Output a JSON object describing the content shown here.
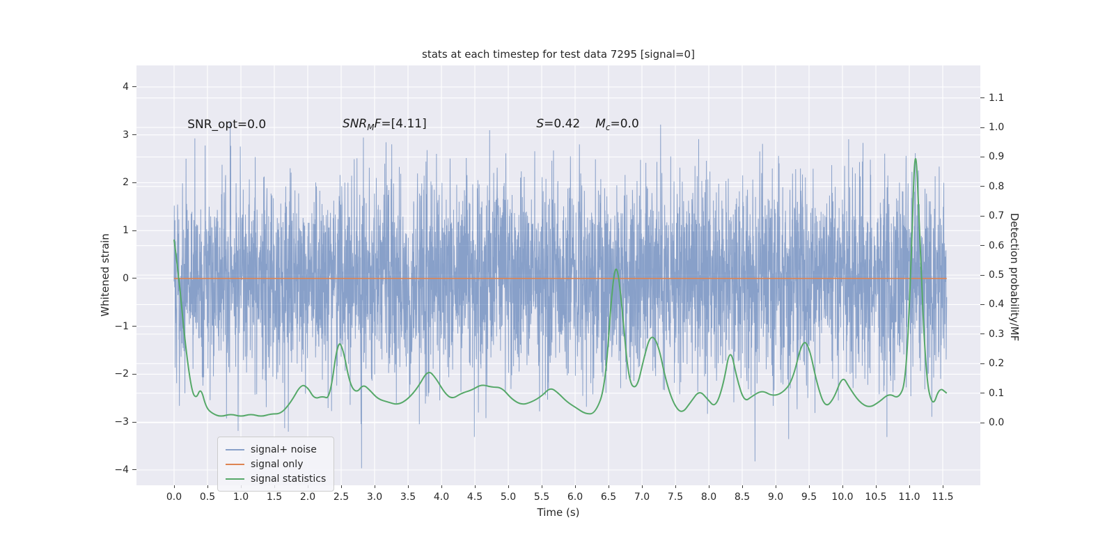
{
  "chart_data": {
    "type": "line",
    "title": "stats at each timestep for test data 7295 [signal=0]",
    "xlabel": "Time (s)",
    "ylabel_left": "Whitened strain",
    "ylabel_right": "Detection probability/MF",
    "xlim": [
      -0.5625,
      12.0625
    ],
    "ylim_left": [
      -4.32,
      4.45
    ],
    "ylim_right": [
      -0.212,
      1.21
    ],
    "grid": true,
    "axes_background": "#eaeaf2",
    "grid_color": "#ffffff",
    "x_ticks": {
      "values": [
        0,
        0.5,
        1,
        1.5,
        2,
        2.5,
        3,
        3.5,
        4,
        4.5,
        5,
        5.5,
        6,
        6.5,
        7,
        7.5,
        8,
        8.5,
        9,
        9.5,
        10,
        10.5,
        11,
        11.5
      ],
      "labels": [
        "0.0",
        "0.5",
        "1.0",
        "1.5",
        "2.0",
        "2.5",
        "3.0",
        "3.5",
        "4.0",
        "4.5",
        "5.0",
        "5.5",
        "6.0",
        "6.5",
        "7.0",
        "7.5",
        "8.0",
        "8.5",
        "9.0",
        "9.5",
        "10.0",
        "10.5",
        "11.0",
        "11.5"
      ]
    },
    "y_ticks_left": {
      "values": [
        4,
        3,
        2,
        1,
        0,
        -1,
        -2,
        -3,
        -4
      ],
      "labels": [
        "4",
        "3",
        "2",
        "1",
        "0",
        "−1",
        "−2",
        "−3",
        "−4"
      ]
    },
    "y_ticks_right": {
      "values": [
        1.1,
        1.0,
        0.9,
        0.8,
        0.7,
        0.6,
        0.5,
        0.4,
        0.3,
        0.2,
        0.1,
        0.0
      ],
      "labels": [
        "1.1",
        "1.0",
        "0.9",
        "0.8",
        "0.7",
        "0.6",
        "0.5",
        "0.4",
        "0.3",
        "0.2",
        "0.1",
        "0.0"
      ]
    },
    "series": [
      {
        "name": "signal+ noise",
        "axis": "left",
        "kind": "gaussian-noise",
        "color": "#4c72b0",
        "alpha": 0.62,
        "mean": 0,
        "std": 1.03,
        "n_samples": 4200,
        "seed": 7295,
        "t_start": 0,
        "t_end": 11.56
      },
      {
        "name": "signal only",
        "axis": "left",
        "kind": "constant",
        "color": "#dd8452",
        "value": 0,
        "t_start": 0,
        "t_end": 11.56
      },
      {
        "name": "signal statistics",
        "axis": "right",
        "kind": "curve",
        "color": "#55a868",
        "points": [
          [
            0.0,
            0.62
          ],
          [
            0.07,
            0.5
          ],
          [
            0.16,
            0.28
          ],
          [
            0.26,
            0.11
          ],
          [
            0.33,
            0.08
          ],
          [
            0.4,
            0.12
          ],
          [
            0.48,
            0.05
          ],
          [
            0.58,
            0.03
          ],
          [
            0.7,
            0.02
          ],
          [
            0.85,
            0.03
          ],
          [
            1.0,
            0.02
          ],
          [
            1.15,
            0.03
          ],
          [
            1.3,
            0.02
          ],
          [
            1.45,
            0.03
          ],
          [
            1.6,
            0.03
          ],
          [
            1.75,
            0.07
          ],
          [
            1.9,
            0.13
          ],
          [
            2.0,
            0.12
          ],
          [
            2.1,
            0.08
          ],
          [
            2.22,
            0.09
          ],
          [
            2.33,
            0.08
          ],
          [
            2.45,
            0.28
          ],
          [
            2.53,
            0.25
          ],
          [
            2.63,
            0.13
          ],
          [
            2.73,
            0.1
          ],
          [
            2.83,
            0.13
          ],
          [
            2.93,
            0.11
          ],
          [
            3.05,
            0.08
          ],
          [
            3.2,
            0.07
          ],
          [
            3.35,
            0.06
          ],
          [
            3.5,
            0.08
          ],
          [
            3.65,
            0.12
          ],
          [
            3.8,
            0.18
          ],
          [
            3.92,
            0.15
          ],
          [
            4.05,
            0.1
          ],
          [
            4.16,
            0.08
          ],
          [
            4.3,
            0.1
          ],
          [
            4.45,
            0.11
          ],
          [
            4.6,
            0.13
          ],
          [
            4.75,
            0.12
          ],
          [
            4.9,
            0.12
          ],
          [
            5.05,
            0.08
          ],
          [
            5.2,
            0.06
          ],
          [
            5.35,
            0.07
          ],
          [
            5.5,
            0.09
          ],
          [
            5.63,
            0.12
          ],
          [
            5.75,
            0.1
          ],
          [
            5.88,
            0.07
          ],
          [
            6.02,
            0.05
          ],
          [
            6.15,
            0.03
          ],
          [
            6.3,
            0.03
          ],
          [
            6.45,
            0.12
          ],
          [
            6.55,
            0.45
          ],
          [
            6.62,
            0.55
          ],
          [
            6.7,
            0.4
          ],
          [
            6.8,
            0.14
          ],
          [
            6.92,
            0.11
          ],
          [
            7.03,
            0.22
          ],
          [
            7.13,
            0.3
          ],
          [
            7.24,
            0.27
          ],
          [
            7.36,
            0.14
          ],
          [
            7.48,
            0.06
          ],
          [
            7.6,
            0.03
          ],
          [
            7.73,
            0.07
          ],
          [
            7.86,
            0.11
          ],
          [
            7.98,
            0.08
          ],
          [
            8.1,
            0.05
          ],
          [
            8.22,
            0.13
          ],
          [
            8.32,
            0.26
          ],
          [
            8.42,
            0.15
          ],
          [
            8.53,
            0.07
          ],
          [
            8.65,
            0.09
          ],
          [
            8.8,
            0.11
          ],
          [
            8.95,
            0.09
          ],
          [
            9.1,
            0.1
          ],
          [
            9.25,
            0.14
          ],
          [
            9.4,
            0.28
          ],
          [
            9.5,
            0.26
          ],
          [
            9.62,
            0.13
          ],
          [
            9.74,
            0.05
          ],
          [
            9.87,
            0.08
          ],
          [
            10.0,
            0.16
          ],
          [
            10.1,
            0.12
          ],
          [
            10.25,
            0.07
          ],
          [
            10.4,
            0.05
          ],
          [
            10.55,
            0.07
          ],
          [
            10.7,
            0.1
          ],
          [
            10.84,
            0.08
          ],
          [
            10.95,
            0.14
          ],
          [
            11.03,
            0.55
          ],
          [
            11.09,
            1.0
          ],
          [
            11.16,
            0.6
          ],
          [
            11.25,
            0.15
          ],
          [
            11.35,
            0.05
          ],
          [
            11.45,
            0.12
          ],
          [
            11.56,
            0.1
          ]
        ]
      }
    ],
    "annotations": {
      "snr_opt": {
        "text": "SNR_opt=0.0",
        "t": 0.2,
        "strain": 3.22
      },
      "snr_mf": {
        "snr": "SNR",
        "sub": "M",
        "f": "F",
        "rest": "=[4.11]",
        "t": 2.52,
        "strain": 3.22
      },
      "s_mc": {
        "s": "S",
        "s_rest": "=0.42",
        "m": "M",
        "m_sub": "c",
        "m_rest": "=0.0",
        "t": 5.42,
        "strain": 3.22
      }
    }
  },
  "legend": {
    "items": [
      {
        "label": "signal+ noise",
        "color": "#88a0c9"
      },
      {
        "label": "signal only",
        "color": "#dd8452"
      },
      {
        "label": "signal statistics",
        "color": "#55a868"
      }
    ]
  }
}
